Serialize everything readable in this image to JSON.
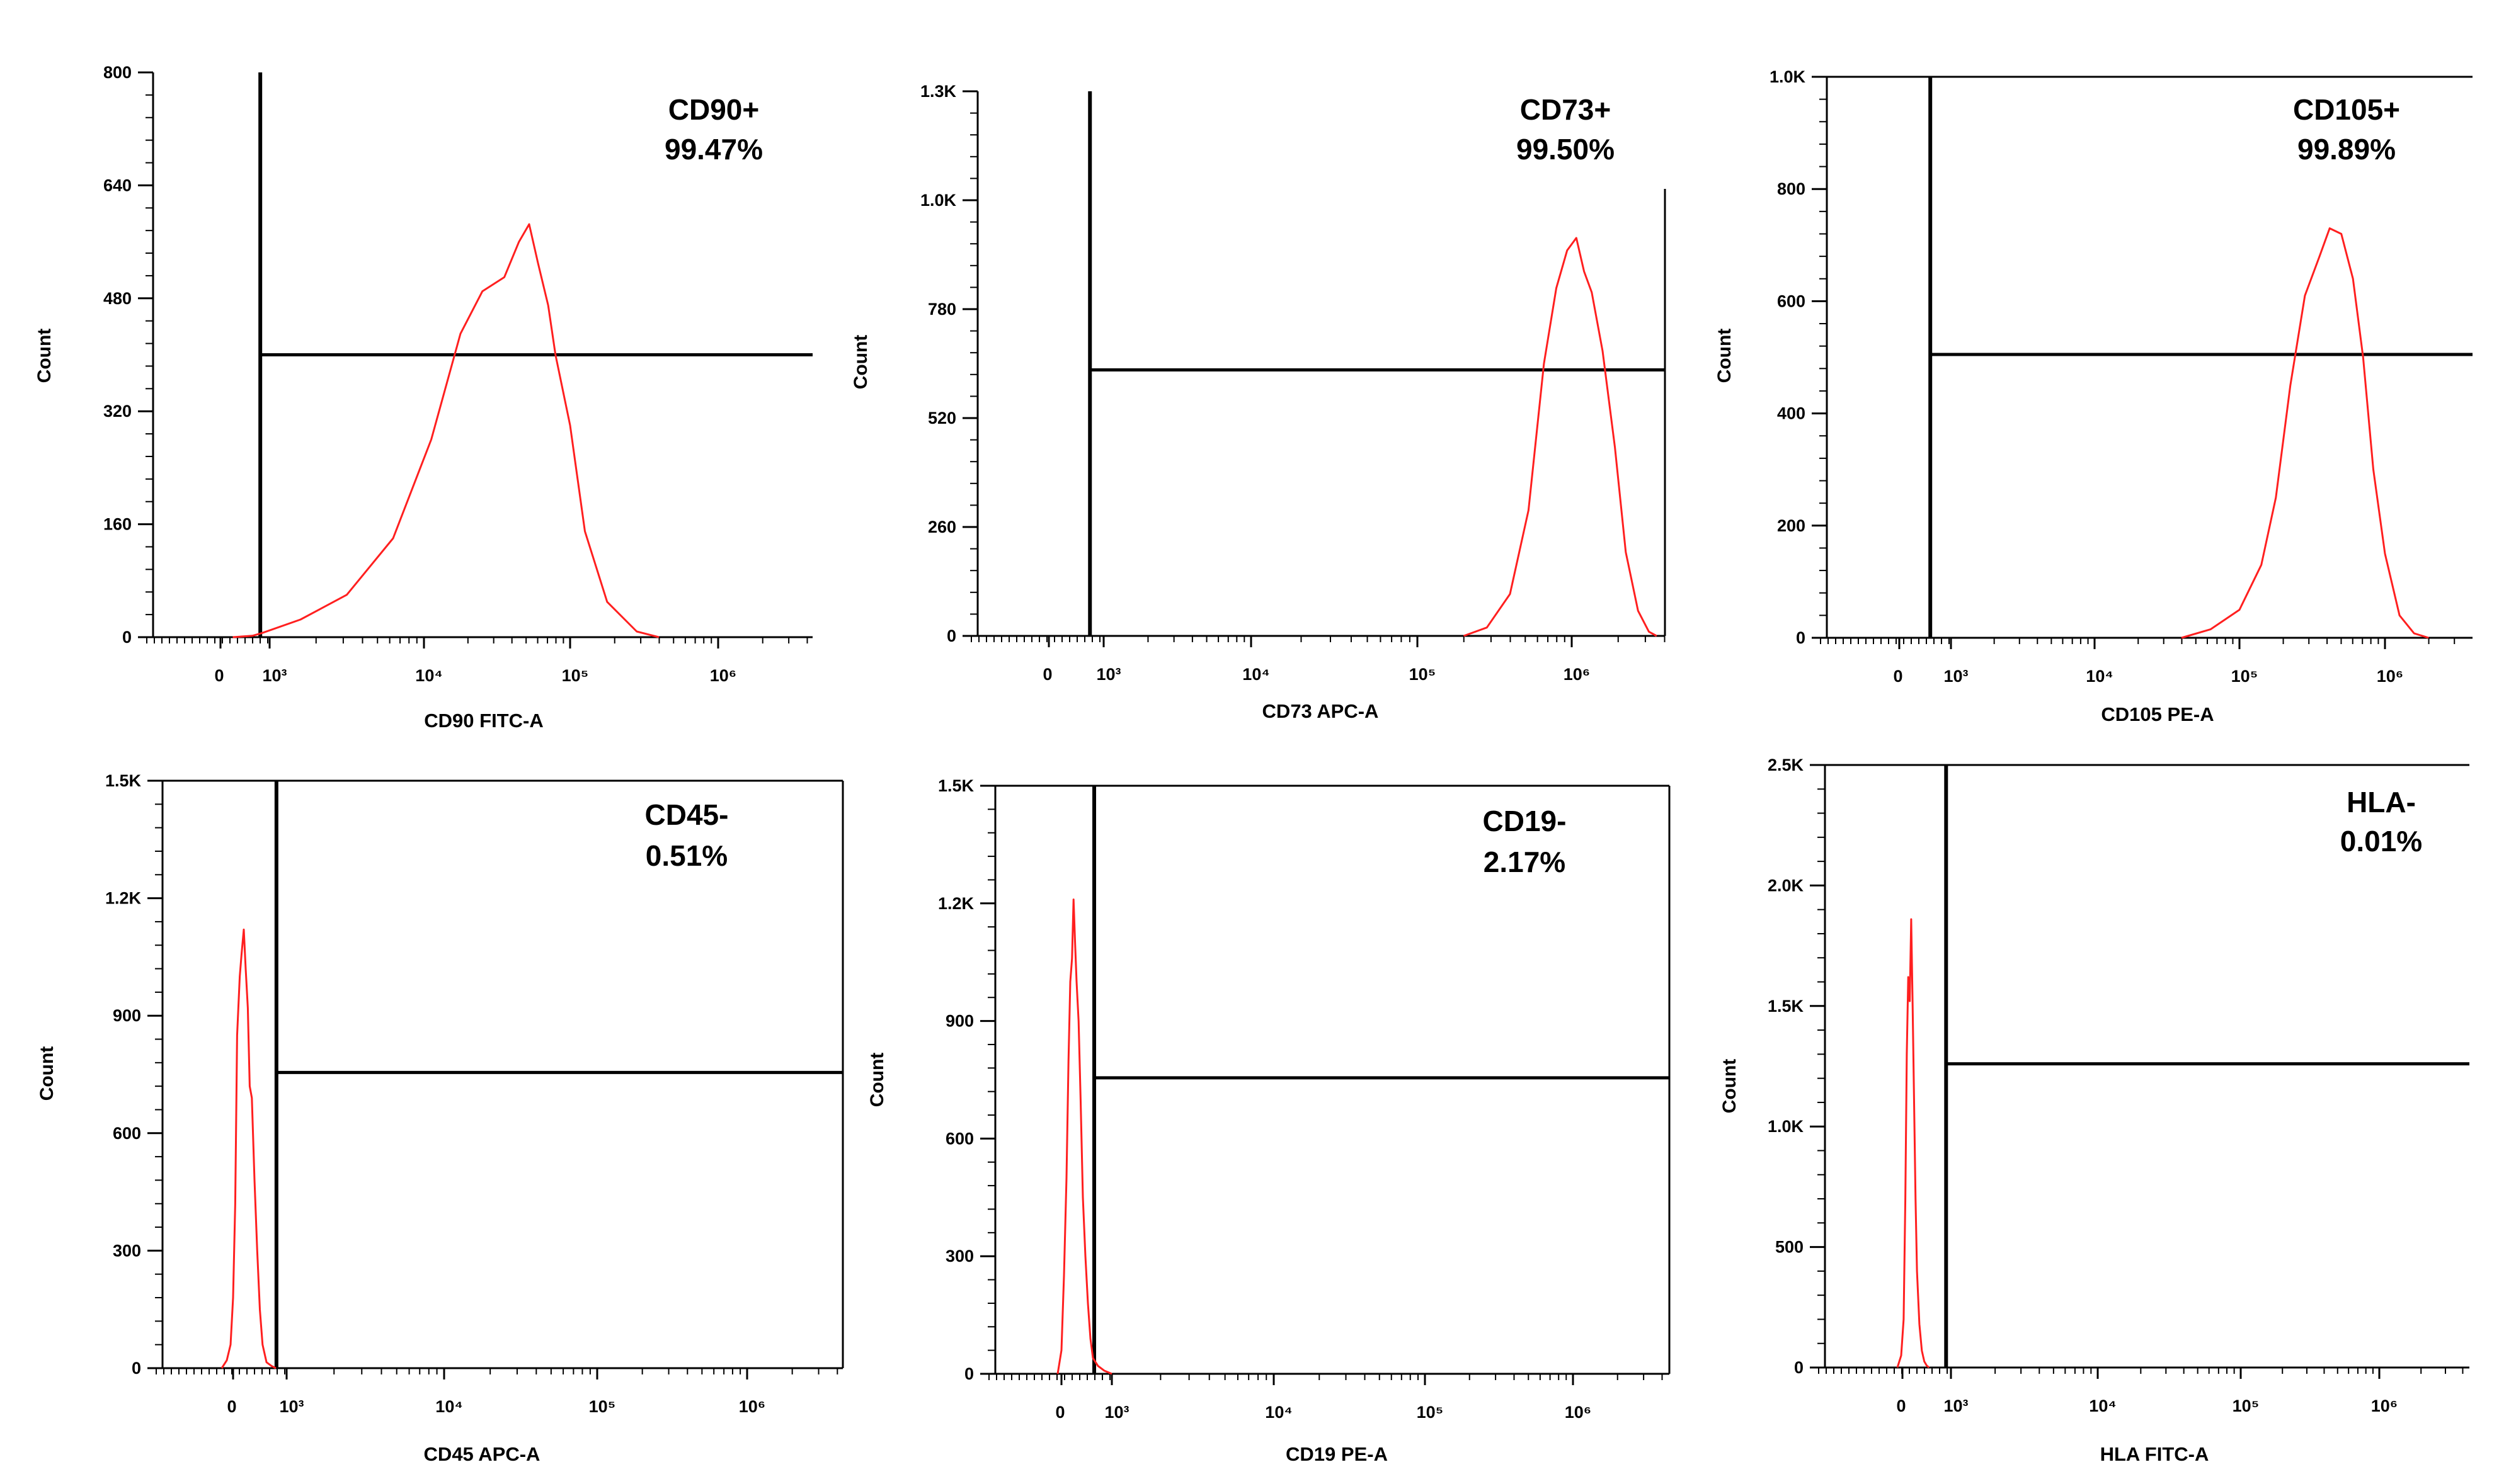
{
  "figure_colors": {
    "histogram": "#ff1f1f",
    "axis": "#000000",
    "gate": "#000000",
    "background": "#ffffff"
  },
  "chart_data": [
    {
      "type": "histogram",
      "marker": "CD90+",
      "percent": "99.47%",
      "xlabel": "CD90 FITC-A",
      "ylabel": "Count",
      "ylim": [
        0,
        800
      ],
      "yticks": [
        "0",
        "160",
        "320",
        "480",
        "640",
        "800"
      ],
      "xticks": [
        "0",
        "10³",
        "10⁴",
        "10⁵",
        "10⁶"
      ],
      "gate_x": 2.62,
      "gate_y": 400,
      "series": {
        "x": [
          1.5,
          2.3,
          2.7,
          3.2,
          3.5,
          3.8,
          4.05,
          4.25,
          4.4,
          4.55,
          4.65,
          4.72,
          4.78,
          4.85,
          4.9,
          5.0,
          5.1,
          5.25,
          5.45,
          5.6
        ],
        "y": [
          0,
          2,
          6,
          25,
          60,
          140,
          280,
          430,
          490,
          510,
          560,
          585,
          530,
          470,
          400,
          300,
          150,
          50,
          8,
          0
        ]
      }
    },
    {
      "type": "histogram",
      "marker": "CD73+",
      "percent": "99.50%",
      "xlabel": "CD73 APC-A",
      "ylabel": "Count",
      "ylim": [
        0,
        1300
      ],
      "yticks": [
        "0",
        "260",
        "520",
        "780",
        "1.0K",
        "1.3K"
      ],
      "xticks": [
        "0",
        "10³",
        "10⁴",
        "10⁵",
        "10⁶"
      ],
      "gate_x": 2.5,
      "gate_y": 635,
      "series": {
        "x": [
          5.3,
          5.45,
          5.6,
          5.72,
          5.82,
          5.9,
          5.97,
          6.03,
          6.08,
          6.13,
          6.2,
          6.28,
          6.35,
          6.43,
          6.5,
          6.55
        ],
        "y": [
          0,
          20,
          100,
          300,
          650,
          830,
          920,
          950,
          870,
          820,
          680,
          450,
          200,
          60,
          10,
          0
        ]
      }
    },
    {
      "type": "histogram",
      "marker": "CD105+",
      "percent": "99.89%",
      "xlabel": "CD105 PE-A",
      "ylabel": "Count",
      "ylim": [
        0,
        1000
      ],
      "yticks": [
        "0",
        "200",
        "400",
        "600",
        "800",
        "1.0K"
      ],
      "xticks": [
        "0",
        "10³",
        "10⁴",
        "10⁵",
        "10⁶"
      ],
      "gate_x": 2.2,
      "gate_y": 505,
      "series": {
        "x": [
          4.6,
          4.8,
          5.0,
          5.15,
          5.25,
          5.35,
          5.45,
          5.55,
          5.62,
          5.7,
          5.78,
          5.85,
          5.92,
          6.0,
          6.1,
          6.2,
          6.3
        ],
        "y": [
          0,
          15,
          50,
          130,
          250,
          450,
          610,
          680,
          730,
          720,
          640,
          500,
          300,
          150,
          40,
          8,
          0
        ]
      }
    },
    {
      "type": "histogram",
      "marker": "CD45-",
      "percent": "0.51%",
      "xlabel": "CD45 APC-A",
      "ylabel": "Count",
      "ylim": [
        0,
        1500
      ],
      "yticks": [
        "0",
        "300",
        "600",
        "900",
        "1.2K",
        "1.5K"
      ],
      "xticks": [
        "0",
        "10³",
        "10⁴",
        "10⁵",
        "10⁶"
      ],
      "gate_x": 2.62,
      "gate_y": 755,
      "series": {
        "x": [
          0.55,
          0.75,
          0.9,
          1.0,
          1.08,
          1.15,
          1.25,
          1.32,
          1.4,
          1.47,
          1.55,
          1.62,
          1.7,
          1.8,
          1.9,
          2.0,
          2.1,
          2.25,
          2.45,
          2.6
        ],
        "y": [
          0,
          20,
          60,
          180,
          420,
          850,
          1000,
          1060,
          1120,
          1020,
          920,
          720,
          690,
          480,
          300,
          150,
          60,
          15,
          5,
          0
        ]
      }
    },
    {
      "type": "histogram",
      "marker": "CD19-",
      "percent": "2.17%",
      "xlabel": "CD19 PE-A",
      "ylabel": "Count",
      "ylim": [
        0,
        1500
      ],
      "yticks": [
        "0",
        "300",
        "600",
        "900",
        "1.2K",
        "1.5K"
      ],
      "xticks": [
        "0",
        "10³",
        "10⁴",
        "10⁵",
        "10⁶"
      ],
      "gate_x": 2.3,
      "gate_y": 755,
      "series": {
        "x": [
          0.85,
          1.0,
          1.1,
          1.2,
          1.28,
          1.35,
          1.42,
          1.48,
          1.54,
          1.6,
          1.68,
          1.76,
          1.85,
          1.95,
          2.05,
          2.15,
          2.25,
          2.45,
          2.7,
          3.0
        ],
        "y": [
          0,
          60,
          250,
          500,
          800,
          1000,
          1060,
          1210,
          1100,
          1000,
          900,
          700,
          450,
          300,
          180,
          90,
          40,
          20,
          8,
          0
        ]
      }
    },
    {
      "type": "histogram",
      "marker": "HLA-",
      "percent": "0.01%",
      "xlabel": "HLA FITC-A",
      "ylabel": "Count",
      "ylim": [
        0,
        2500
      ],
      "yticks": [
        "0",
        "500",
        "1.0K",
        "1.5K",
        "2.0K",
        "2.5K"
      ],
      "xticks": [
        "0",
        "10³",
        "10⁴",
        "10⁵",
        "10⁶"
      ],
      "gate_x": 2.8,
      "gate_y": 1260,
      "series": {
        "x": [
          0.8,
          0.95,
          1.05,
          1.12,
          1.18,
          1.24,
          1.3,
          1.36,
          1.42,
          1.48,
          1.54,
          1.6,
          1.7,
          1.8,
          1.9,
          2.0,
          2.1
        ],
        "y": [
          0,
          50,
          200,
          700,
          1300,
          1620,
          1520,
          1860,
          1500,
          1100,
          700,
          400,
          180,
          70,
          25,
          8,
          0
        ]
      }
    }
  ]
}
